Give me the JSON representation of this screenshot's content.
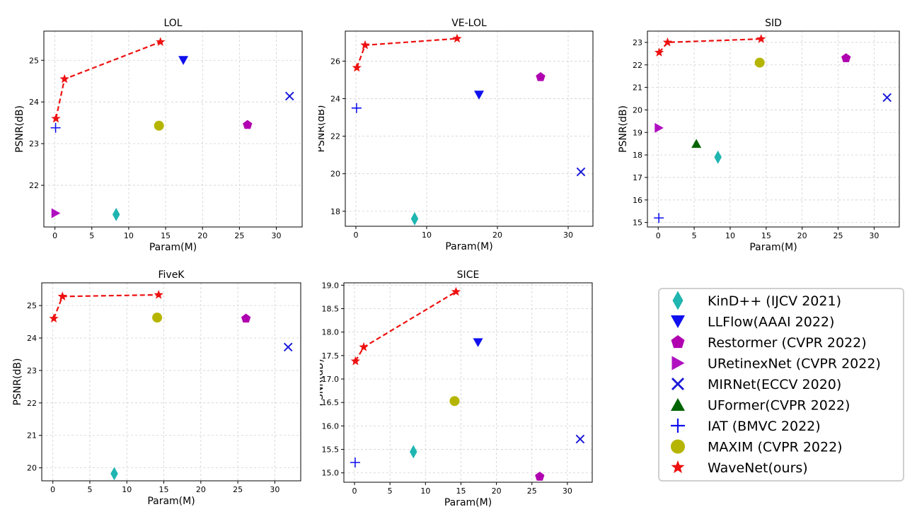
{
  "legend": [
    {
      "name": "KinD++ (IJCV 2021)",
      "marker": "diamond",
      "color": "#1fb5b0"
    },
    {
      "name": "LLFlow(AAAI 2022)",
      "marker": "triangle-down",
      "color": "#1010ee"
    },
    {
      "name": "Restormer (CVPR 2022)",
      "marker": "pentagon",
      "color": "#b000b0"
    },
    {
      "name": "URetinexNet (CVPR 2022)",
      "marker": "triangle-right",
      "color": "#b010c0"
    },
    {
      "name": "MIRNet(ECCV 2020)",
      "marker": "x",
      "color": "#1818d8"
    },
    {
      "name": "UFormer(CVPR 2022)",
      "marker": "triangle-up",
      "color": "#006400"
    },
    {
      "name": "IAT (BMVC 2022)",
      "marker": "plus",
      "color": "#1010ee"
    },
    {
      "name": "MAXIM (CVPR 2022)",
      "marker": "circle",
      "color": "#b5b500"
    },
    {
      "name": "WaveNet(ours)",
      "marker": "star",
      "color": "#ee1010"
    }
  ],
  "chart_data": [
    {
      "type": "scatter",
      "title": "LOL",
      "xlabel": "Param(M)",
      "ylabel": "PSNR(dB)",
      "xlim": [
        -1.5,
        33.5
      ],
      "ylim": [
        21.0,
        25.7
      ],
      "xticks": [
        0,
        5,
        10,
        15,
        20,
        25,
        30
      ],
      "yticks": [
        22,
        23,
        24,
        25
      ],
      "grid": true,
      "points": [
        {
          "series": 0,
          "x": 8.3,
          "y": 21.3
        },
        {
          "series": 1,
          "x": 17.4,
          "y": 25.0
        },
        {
          "series": 2,
          "x": 26.1,
          "y": 23.45
        },
        {
          "series": 3,
          "x": 0.1,
          "y": 21.33
        },
        {
          "series": 4,
          "x": 31.8,
          "y": 24.14
        },
        {
          "series": 6,
          "x": 0.09,
          "y": 23.38
        },
        {
          "series": 7,
          "x": 14.1,
          "y": 23.43
        }
      ],
      "wavenet": {
        "x": [
          0.13,
          1.3,
          14.3
        ],
        "y": [
          23.6,
          24.55,
          25.44
        ]
      }
    },
    {
      "type": "scatter",
      "title": "VE-LOL",
      "xlabel": "Param(M)",
      "ylabel": "PSNR(dB)",
      "xlim": [
        -1.5,
        33.5
      ],
      "ylim": [
        17.2,
        27.6
      ],
      "xticks": [
        0,
        10,
        20,
        30
      ],
      "yticks": [
        18,
        20,
        22,
        24,
        26
      ],
      "grid": true,
      "points": [
        {
          "series": 0,
          "x": 8.3,
          "y": 17.6
        },
        {
          "series": 1,
          "x": 17.4,
          "y": 24.2
        },
        {
          "series": 2,
          "x": 26.1,
          "y": 25.15
        },
        {
          "series": 4,
          "x": 31.8,
          "y": 20.1
        },
        {
          "series": 6,
          "x": 0.09,
          "y": 23.5
        }
      ],
      "wavenet": {
        "x": [
          0.13,
          1.3,
          14.3
        ],
        "y": [
          25.65,
          26.85,
          27.2
        ]
      }
    },
    {
      "type": "scatter",
      "title": "SID",
      "xlabel": "Param(M)",
      "ylabel": "PSNR(dB)",
      "xlim": [
        -1.5,
        33.5
      ],
      "ylim": [
        14.8,
        23.5
      ],
      "xticks": [
        0,
        5,
        10,
        15,
        20,
        25,
        30
      ],
      "yticks": [
        15,
        16,
        17,
        18,
        19,
        20,
        21,
        22,
        23
      ],
      "grid": true,
      "points": [
        {
          "series": 0,
          "x": 8.3,
          "y": 17.9
        },
        {
          "series": 2,
          "x": 26.1,
          "y": 22.3
        },
        {
          "series": 3,
          "x": 0.1,
          "y": 19.2
        },
        {
          "series": 4,
          "x": 31.8,
          "y": 20.55
        },
        {
          "series": 5,
          "x": 5.3,
          "y": 18.5
        },
        {
          "series": 6,
          "x": 0.09,
          "y": 15.2
        },
        {
          "series": 7,
          "x": 14.1,
          "y": 22.1
        }
      ],
      "wavenet": {
        "x": [
          0.13,
          1.3,
          14.3
        ],
        "y": [
          22.55,
          23.0,
          23.15
        ]
      }
    },
    {
      "type": "scatter",
      "title": "FiveK",
      "xlabel": "Param(M)",
      "ylabel": "PSNR(dB)",
      "xlim": [
        -1.5,
        33.5
      ],
      "ylim": [
        19.6,
        25.7
      ],
      "xticks": [
        0,
        5,
        10,
        15,
        20,
        25,
        30
      ],
      "yticks": [
        20,
        21,
        22,
        23,
        24,
        25
      ],
      "grid": true,
      "points": [
        {
          "series": 0,
          "x": 8.3,
          "y": 19.82
        },
        {
          "series": 2,
          "x": 26.1,
          "y": 24.6
        },
        {
          "series": 4,
          "x": 31.8,
          "y": 23.72
        },
        {
          "series": 7,
          "x": 14.1,
          "y": 24.63
        }
      ],
      "wavenet": {
        "x": [
          0.13,
          1.3,
          14.3
        ],
        "y": [
          24.6,
          25.28,
          25.33
        ]
      }
    },
    {
      "type": "scatter",
      "title": "SICE",
      "xlabel": "Param(M)",
      "ylabel": "PSNR(dB)",
      "xlim": [
        -1.5,
        33.5
      ],
      "ylim": [
        14.8,
        19.05
      ],
      "xticks": [
        0,
        5,
        10,
        15,
        20,
        25,
        30
      ],
      "yticks": [
        15.0,
        15.5,
        16.0,
        16.5,
        17.0,
        17.5,
        18.0,
        18.5,
        19.0
      ],
      "ytickfmt": 1,
      "grid": true,
      "points": [
        {
          "series": 0,
          "x": 8.3,
          "y": 15.45
        },
        {
          "series": 1,
          "x": 17.4,
          "y": 17.78
        },
        {
          "series": 2,
          "x": 26.1,
          "y": 14.92
        },
        {
          "series": 4,
          "x": 31.8,
          "y": 15.72
        },
        {
          "series": 6,
          "x": 0.09,
          "y": 15.22
        },
        {
          "series": 7,
          "x": 14.1,
          "y": 16.53
        }
      ],
      "wavenet": {
        "x": [
          0.13,
          1.3,
          14.3
        ],
        "y": [
          17.38,
          17.68,
          18.86
        ]
      }
    }
  ]
}
